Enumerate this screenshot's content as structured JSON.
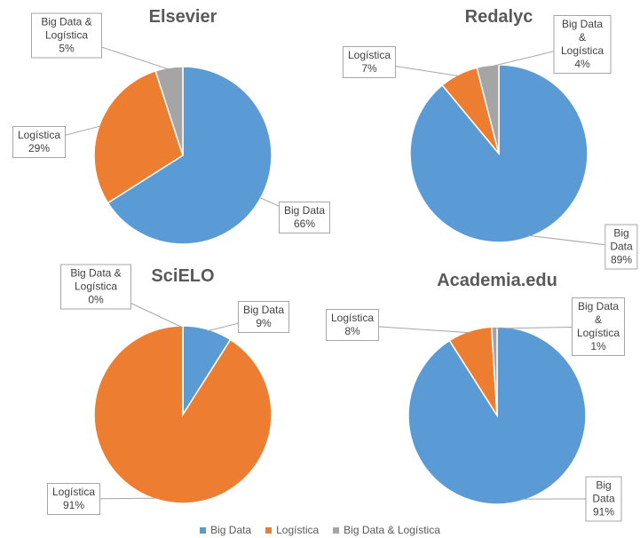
{
  "chart_data": [
    {
      "type": "pie",
      "title": "Elsevier",
      "categories": [
        "Big Data",
        "Logística",
        "Big Data & Logística"
      ],
      "values": [
        66,
        29,
        5
      ],
      "value_labels": [
        "66%",
        "29%",
        "5%"
      ],
      "colors": [
        "#5b9bd5",
        "#ed7d31",
        "#a5a5a5"
      ],
      "legend": "bottom"
    },
    {
      "type": "pie",
      "title": "Redalyc",
      "categories": [
        "Big Data",
        "Logística",
        "Big Data & Logística"
      ],
      "values": [
        89,
        7,
        4
      ],
      "value_labels": [
        "89%",
        "7%",
        "4%"
      ],
      "colors": [
        "#5b9bd5",
        "#ed7d31",
        "#a5a5a5"
      ]
    },
    {
      "type": "pie",
      "title": "SciELO",
      "categories": [
        "Big Data",
        "Logística",
        "Big Data & Logística"
      ],
      "values": [
        9,
        91,
        0
      ],
      "value_labels": [
        "9%",
        "91%",
        "0%"
      ],
      "colors": [
        "#5b9bd5",
        "#ed7d31",
        "#a5a5a5"
      ]
    },
    {
      "type": "pie",
      "title": "Academia.edu",
      "categories": [
        "Big Data",
        "Logística",
        "Big Data & Logística"
      ],
      "values": [
        91,
        8,
        1
      ],
      "value_labels": [
        "91%",
        "8%",
        "1%"
      ],
      "colors": [
        "#5b9bd5",
        "#ed7d31",
        "#a5a5a5"
      ]
    }
  ]
}
